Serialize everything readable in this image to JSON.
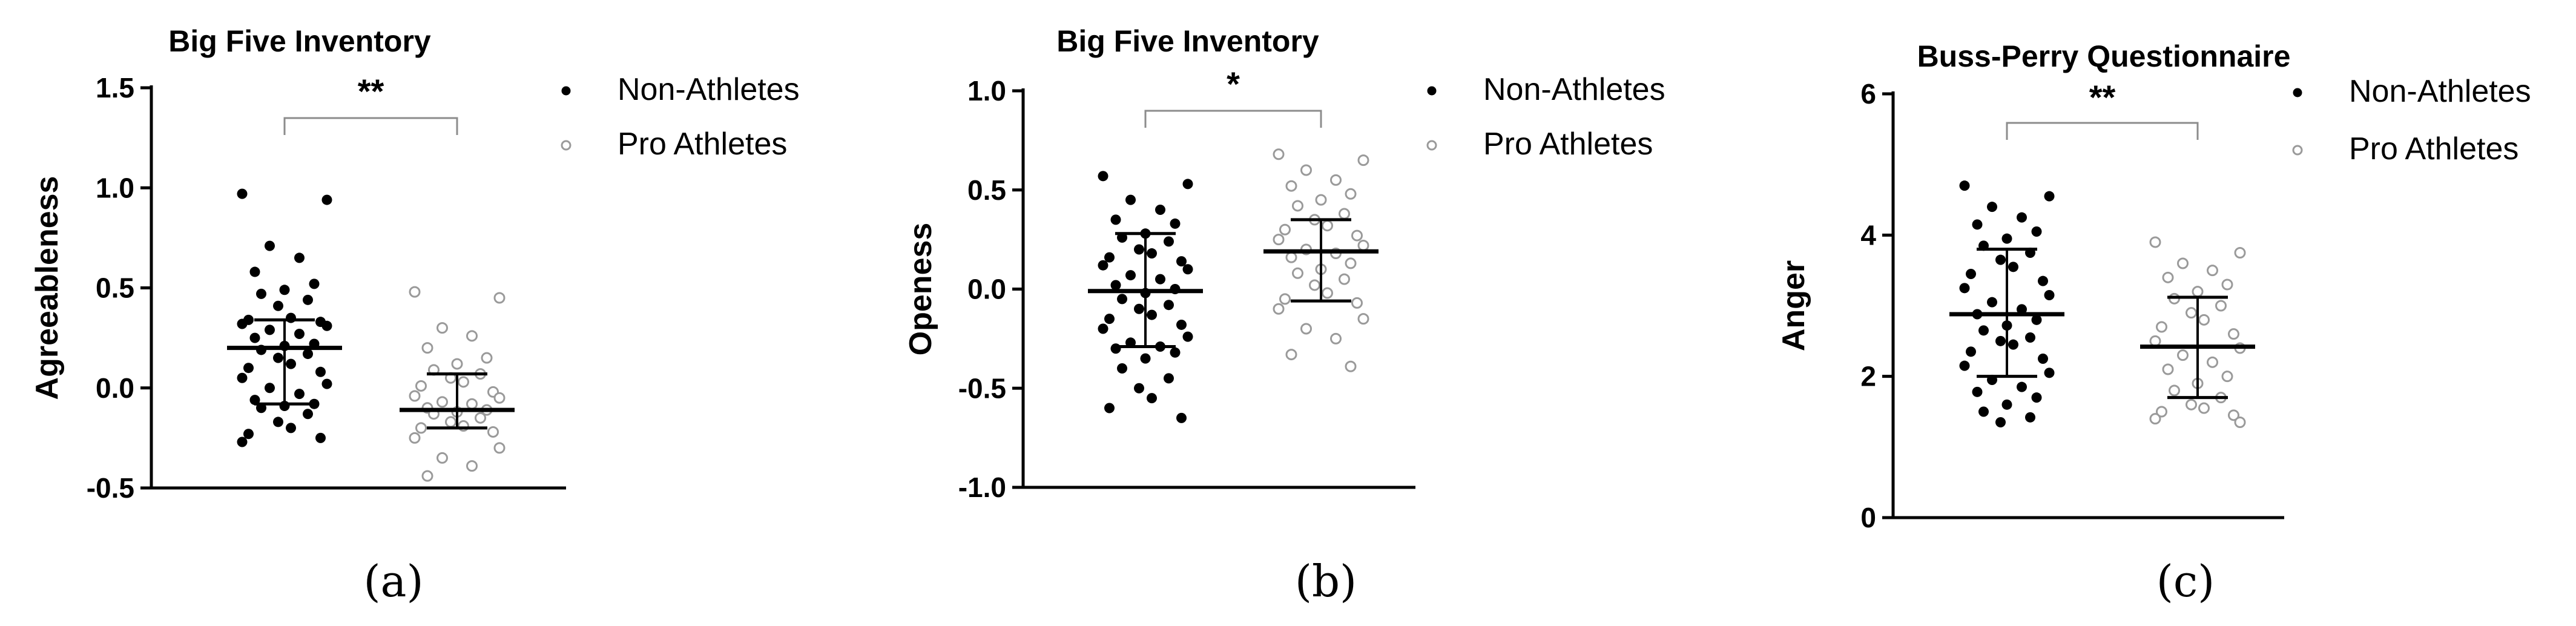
{
  "legend": {
    "non_athletes": "Non-Athletes",
    "pro_athletes": "Pro Athletes"
  },
  "colors": {
    "non_athletes": "#000000",
    "pro_athletes": "#9a9a9a",
    "axis": "#000000"
  },
  "chart_data": [
    {
      "type": "scatter",
      "panel_label": "(a)",
      "title": "Big Five Inventory",
      "ylabel": "Agreeableness",
      "ylim": [
        -0.5,
        1.5
      ],
      "yticks": [
        -0.5,
        0.0,
        0.5,
        1.0,
        1.5
      ],
      "ytick_labels": [
        "-0.5",
        "0.0",
        "0.5",
        "1.0",
        "1.5"
      ],
      "significance": "**",
      "series": [
        {
          "name": "Non-Athletes",
          "mean": 0.2,
          "sd_low": -0.08,
          "sd_high": 0.34,
          "values": [
            0.97,
            0.94,
            0.71,
            0.65,
            0.58,
            0.52,
            0.49,
            0.47,
            0.44,
            0.41,
            0.35,
            0.34,
            0.33,
            0.32,
            0.31,
            0.29,
            0.27,
            0.25,
            0.22,
            0.21,
            0.19,
            0.17,
            0.15,
            0.12,
            0.1,
            0.08,
            0.05,
            0.02,
            0.0,
            -0.03,
            -0.06,
            -0.08,
            -0.09,
            -0.1,
            -0.13,
            -0.17,
            -0.2,
            -0.23,
            -0.25,
            -0.27
          ]
        },
        {
          "name": "Pro Athletes",
          "mean": -0.11,
          "sd_low": -0.2,
          "sd_high": 0.07,
          "values": [
            0.48,
            0.45,
            0.3,
            0.26,
            0.2,
            0.15,
            0.12,
            0.09,
            0.07,
            0.05,
            0.03,
            0.01,
            -0.02,
            -0.04,
            -0.05,
            -0.07,
            -0.08,
            -0.1,
            -0.11,
            -0.12,
            -0.13,
            -0.15,
            -0.17,
            -0.19,
            -0.2,
            -0.22,
            -0.25,
            -0.3,
            -0.35,
            -0.39,
            -0.44
          ]
        }
      ]
    },
    {
      "type": "scatter",
      "panel_label": "(b)",
      "title": "Big Five Inventory",
      "ylabel": "Openess",
      "ylim": [
        -1.0,
        1.0
      ],
      "yticks": [
        -1.0,
        -0.5,
        0.0,
        0.5,
        1.0
      ],
      "ytick_labels": [
        "-1.0",
        "-0.5",
        "0.0",
        "0.5",
        "1.0"
      ],
      "significance": "*",
      "series": [
        {
          "name": "Non-Athletes",
          "mean": -0.01,
          "sd_low": -0.29,
          "sd_high": 0.28,
          "values": [
            0.57,
            0.53,
            0.45,
            0.4,
            0.35,
            0.33,
            0.28,
            0.26,
            0.24,
            0.2,
            0.18,
            0.16,
            0.14,
            0.12,
            0.1,
            0.07,
            0.05,
            0.02,
            0.0,
            -0.02,
            -0.05,
            -0.08,
            -0.1,
            -0.13,
            -0.15,
            -0.18,
            -0.2,
            -0.24,
            -0.27,
            -0.29,
            -0.3,
            -0.32,
            -0.35,
            -0.4,
            -0.45,
            -0.5,
            -0.55,
            -0.6,
            -0.65
          ]
        },
        {
          "name": "Pro Athletes",
          "mean": 0.19,
          "sd_low": -0.06,
          "sd_high": 0.35,
          "values": [
            0.68,
            0.65,
            0.6,
            0.55,
            0.52,
            0.48,
            0.45,
            0.42,
            0.38,
            0.35,
            0.32,
            0.3,
            0.27,
            0.25,
            0.22,
            0.2,
            0.18,
            0.16,
            0.13,
            0.1,
            0.08,
            0.05,
            0.02,
            -0.02,
            -0.05,
            -0.07,
            -0.1,
            -0.15,
            -0.2,
            -0.25,
            -0.33,
            -0.39
          ]
        }
      ]
    },
    {
      "type": "scatter",
      "panel_label": "(c)",
      "title": "Buss-Perry Questionnaire",
      "ylabel": "Anger",
      "ylim": [
        0,
        6
      ],
      "yticks": [
        0,
        2,
        4,
        6
      ],
      "ytick_labels": [
        "0",
        "2",
        "4",
        "6"
      ],
      "significance": "**",
      "series": [
        {
          "name": "Non-Athletes",
          "mean": 2.88,
          "sd_low": 2.0,
          "sd_high": 3.8,
          "values": [
            4.7,
            4.55,
            4.4,
            4.25,
            4.15,
            4.05,
            3.95,
            3.85,
            3.75,
            3.65,
            3.55,
            3.45,
            3.35,
            3.25,
            3.15,
            3.05,
            2.95,
            2.88,
            2.8,
            2.72,
            2.65,
            2.55,
            2.5,
            2.45,
            2.35,
            2.25,
            2.15,
            2.05,
            1.95,
            1.85,
            1.78,
            1.7,
            1.6,
            1.5,
            1.42,
            1.35
          ]
        },
        {
          "name": "Pro Athletes",
          "mean": 2.42,
          "sd_low": 1.7,
          "sd_high": 3.12,
          "values": [
            3.9,
            3.75,
            3.6,
            3.5,
            3.4,
            3.3,
            3.2,
            3.1,
            3.0,
            2.9,
            2.8,
            2.7,
            2.6,
            2.5,
            2.4,
            2.3,
            2.2,
            2.1,
            2.0,
            1.9,
            1.8,
            1.7,
            1.6,
            1.55,
            1.5,
            1.45,
            1.4,
            1.35
          ]
        }
      ]
    }
  ]
}
